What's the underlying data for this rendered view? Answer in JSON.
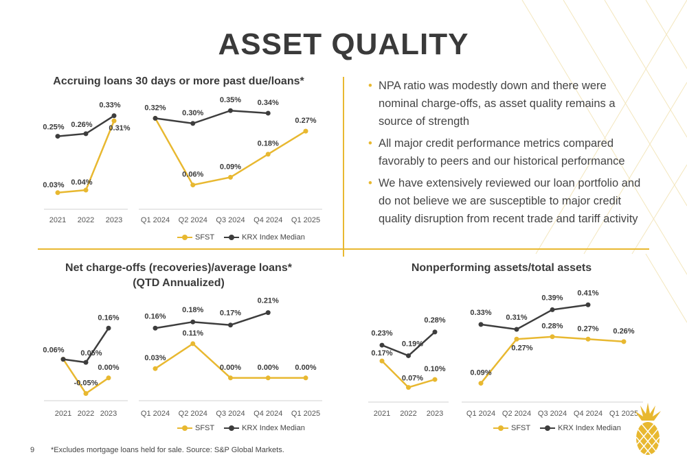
{
  "page": {
    "title": "ASSET QUALITY",
    "page_number": "9",
    "footnote": "*Excludes mortgage loans held for sale. Source: S&P Global Markets.",
    "colors": {
      "sfst": "#e8b830",
      "krx": "#3d3d3d",
      "accent": "#e8b830"
    },
    "logo_icon": "pineapple-icon"
  },
  "legend": {
    "sfst": "SFST",
    "krx": "KRX Index Median"
  },
  "bullets": [
    "NPA ratio was modestly down and there were nominal charge-offs, as asset quality remains a source of strength",
    "All major credit performance metrics compared favorably to peers and our historical performance",
    "We have extensively reviewed our loan portfolio and do not believe we are susceptible to major credit quality disruption from recent trade and tariff activity"
  ],
  "panels": {
    "p1": {
      "title": "Accruing loans 30 days or more past due/loans*"
    },
    "p2": {
      "title_line1": "Net charge-offs (recoveries)/average loans*",
      "title_line2": "(QTD Annualized)"
    },
    "p3": {
      "title": "Nonperforming assets/total assets"
    }
  },
  "chart_data": [
    {
      "id": "p1-annual",
      "type": "line",
      "title": "Accruing loans 30 days or more past due/loans*",
      "categories": [
        "2021",
        "2022",
        "2023"
      ],
      "series": [
        {
          "name": "SFST",
          "values": [
            0.03,
            0.04,
            0.31
          ],
          "labels": [
            "0.03%",
            "0.04%",
            "0.31%"
          ]
        },
        {
          "name": "KRX Index Median",
          "values": [
            0.25,
            0.26,
            0.33
          ],
          "labels": [
            "0.25%",
            "0.26%",
            "0.33%"
          ]
        }
      ],
      "ylim": [
        0,
        0.38
      ]
    },
    {
      "id": "p1-quarterly",
      "type": "line",
      "categories": [
        "Q1 2024",
        "Q2 2024",
        "Q3 2024",
        "Q4 2024",
        "Q1 2025"
      ],
      "series": [
        {
          "name": "SFST",
          "values": [
            0.32,
            0.06,
            0.09,
            0.18,
            0.27
          ],
          "labels": [
            "",
            "0.06%",
            "0.09%",
            "0.18%",
            "0.27%"
          ]
        },
        {
          "name": "KRX Index Median",
          "values": [
            0.32,
            0.3,
            0.35,
            0.34,
            null
          ],
          "labels": [
            "0.32%",
            "0.30%",
            "0.35%",
            "0.34%",
            ""
          ]
        }
      ],
      "ylim": [
        0,
        0.38
      ],
      "legend": "bottom"
    },
    {
      "id": "p2-annual",
      "type": "line",
      "title": "Net charge-offs (recoveries)/average loans* (QTD Annualized)",
      "categories": [
        "2021",
        "2022",
        "2023"
      ],
      "series": [
        {
          "name": "SFST",
          "values": [
            0.06,
            -0.05,
            0.0
          ],
          "labels": [
            "",
            "-0.05%",
            "0.00%"
          ]
        },
        {
          "name": "KRX Index Median",
          "values": [
            0.06,
            0.05,
            0.16
          ],
          "labels": [
            "0.06%",
            "0.05%",
            "0.16%"
          ]
        }
      ],
      "ylim": [
        -0.06,
        0.24
      ]
    },
    {
      "id": "p2-quarterly",
      "type": "line",
      "categories": [
        "Q1 2024",
        "Q2 2024",
        "Q3 2024",
        "Q4 2024",
        "Q1 2025"
      ],
      "series": [
        {
          "name": "SFST",
          "values": [
            0.03,
            0.11,
            0.0,
            0.0,
            0.0
          ],
          "labels": [
            "0.03%",
            "0.11%",
            "0.00%",
            "0.00%",
            "0.00%"
          ]
        },
        {
          "name": "KRX Index Median",
          "values": [
            0.16,
            0.18,
            0.17,
            0.21,
            null
          ],
          "labels": [
            "0.16%",
            "0.18%",
            "0.17%",
            "0.21%",
            ""
          ]
        }
      ],
      "ylim": [
        -0.06,
        0.24
      ],
      "legend": "bottom"
    },
    {
      "id": "p3-annual",
      "type": "line",
      "title": "Nonperforming assets/total assets",
      "categories": [
        "2021",
        "2022",
        "2023"
      ],
      "series": [
        {
          "name": "SFST",
          "values": [
            0.17,
            0.07,
            0.1
          ],
          "labels": [
            "0.17%",
            "0.07%",
            "0.10%"
          ]
        },
        {
          "name": "KRX Index Median",
          "values": [
            0.23,
            0.19,
            0.28
          ],
          "labels": [
            "0.23%",
            "0.19%",
            "0.28%"
          ]
        }
      ],
      "ylim": [
        0.03,
        0.42
      ]
    },
    {
      "id": "p3-quarterly",
      "type": "line",
      "categories": [
        "Q1 2024",
        "Q2 2024",
        "Q3 2024",
        "Q4 2024",
        "Q1 2025"
      ],
      "series": [
        {
          "name": "SFST",
          "values": [
            0.09,
            0.27,
            0.28,
            0.27,
            0.26
          ],
          "labels": [
            "0.09%",
            "0.27%",
            "0.28%",
            "0.27%",
            "0.26%"
          ]
        },
        {
          "name": "KRX Index Median",
          "values": [
            0.33,
            0.31,
            0.39,
            0.41,
            null
          ],
          "labels": [
            "0.33%",
            "0.31%",
            "0.39%",
            "0.41%",
            ""
          ]
        }
      ],
      "ylim": [
        0.03,
        0.45
      ],
      "legend": "bottom"
    }
  ]
}
